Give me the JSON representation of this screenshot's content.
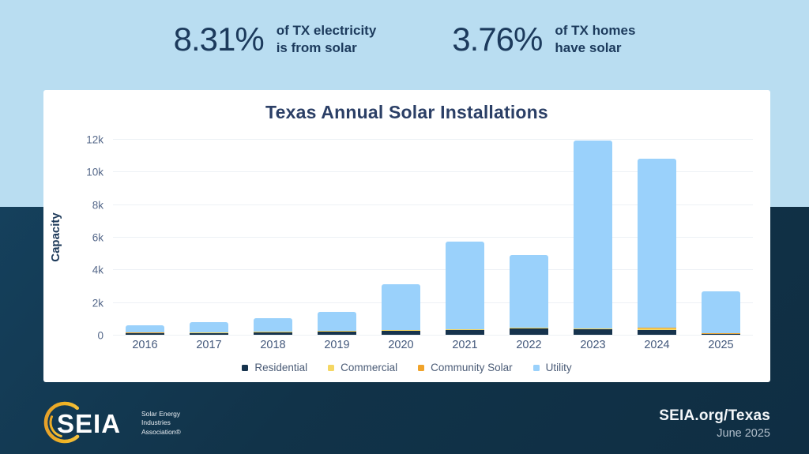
{
  "stats": [
    {
      "value": "8.31%",
      "label_line1": "of TX electricity",
      "label_line2": "is from solar"
    },
    {
      "value": "3.76%",
      "label_line1": "of TX homes",
      "label_line2": "have solar"
    }
  ],
  "chart_data": {
    "type": "bar",
    "stacked": true,
    "title": "Texas Annual Solar Installations",
    "ylabel": "Capacity",
    "xlabel": "",
    "categories": [
      "2016",
      "2017",
      "2018",
      "2019",
      "2020",
      "2021",
      "2022",
      "2023",
      "2024",
      "2025"
    ],
    "series": [
      {
        "name": "Residential",
        "color": "#16334d",
        "values": [
          100,
          100,
          150,
          200,
          250,
          280,
          400,
          320,
          300,
          50
        ]
      },
      {
        "name": "Commercial",
        "color": "#f5d763",
        "values": [
          20,
          30,
          50,
          30,
          30,
          40,
          40,
          60,
          100,
          20
        ]
      },
      {
        "name": "Community Solar",
        "color": "#f0a32a",
        "values": [
          20,
          10,
          10,
          10,
          10,
          10,
          10,
          20,
          20,
          10
        ]
      },
      {
        "name": "Utility",
        "color": "#9ad1fb",
        "values": [
          460,
          660,
          790,
          1160,
          2810,
          5370,
          4450,
          11500,
          10380,
          2570
        ]
      }
    ],
    "totals": [
      600,
      800,
      1000,
      1400,
      3100,
      5700,
      4900,
      11900,
      10800,
      2650
    ],
    "ylim": [
      0,
      12000
    ],
    "yticks": [
      0,
      2000,
      4000,
      6000,
      8000,
      10000,
      12000
    ],
    "ytick_labels": [
      "0",
      "2k",
      "4k",
      "6k",
      "8k",
      "10k",
      "12k"
    ],
    "grid": true,
    "legend_position": "bottom"
  },
  "footer": {
    "logo_text": "SEIA",
    "logo_subtext": [
      "Solar Energy",
      "Industries",
      "Association®"
    ],
    "site": "SEIA.org/Texas",
    "date": "June 2025"
  },
  "colors": {
    "background_top": "#b9ddf1",
    "background_bottom": "#113349",
    "card": "#ffffff",
    "title_text": "#2b3f66",
    "stat_text": "#1c3a5c",
    "axis_text": "#55688a",
    "logo_gold": "#f0b323"
  }
}
